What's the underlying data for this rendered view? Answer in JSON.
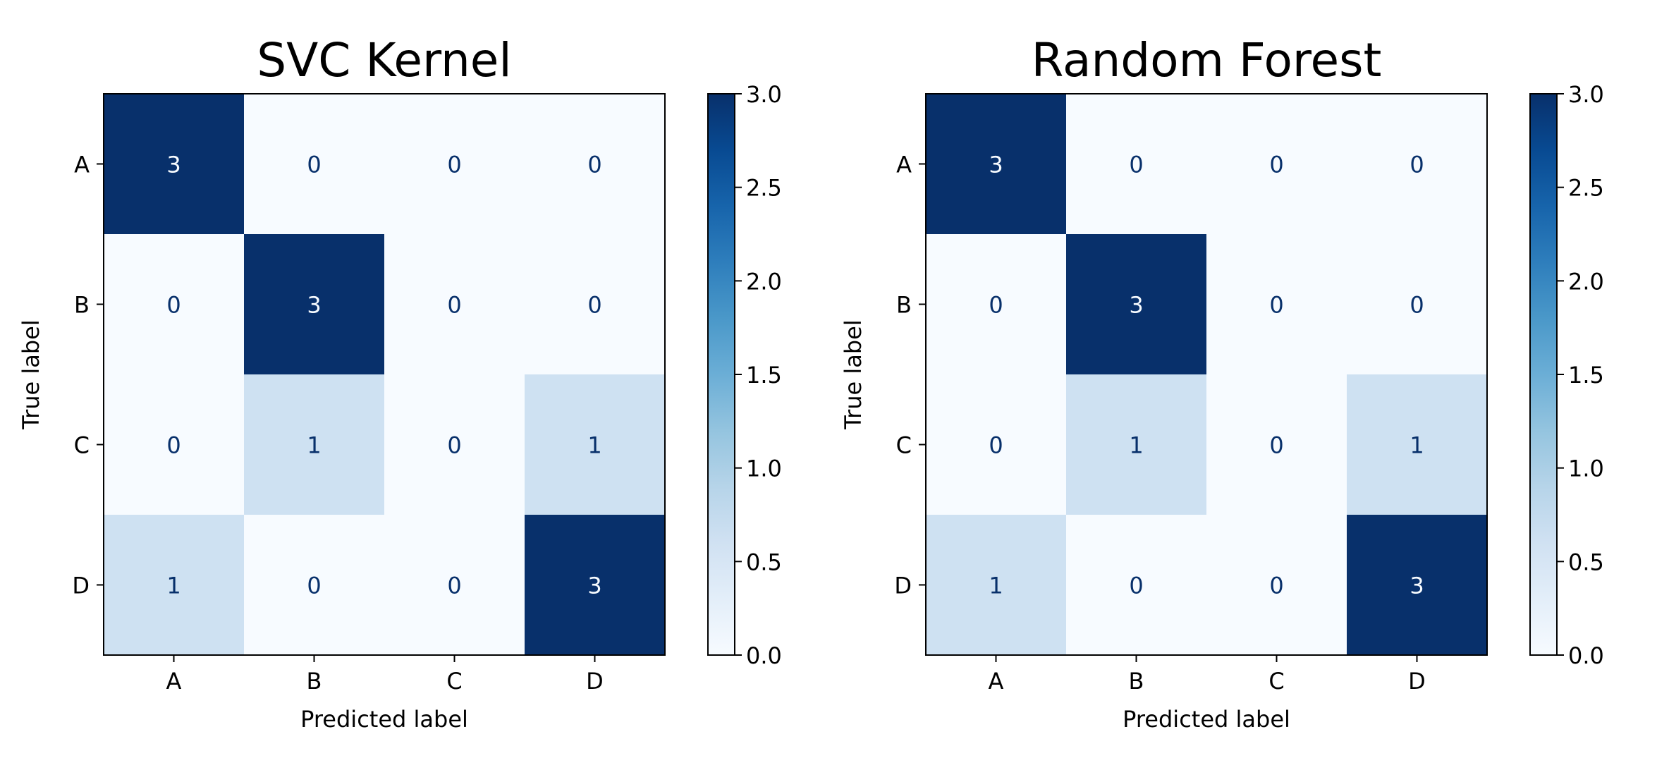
{
  "chart_data": [
    {
      "type": "heatmap",
      "title": "SVC Kernel",
      "xlabel": "Predicted label",
      "ylabel": "True label",
      "x_categories": [
        "A",
        "B",
        "C",
        "D"
      ],
      "y_categories": [
        "A",
        "B",
        "C",
        "D"
      ],
      "values": [
        [
          3,
          0,
          0,
          0
        ],
        [
          0,
          3,
          0,
          0
        ],
        [
          0,
          1,
          0,
          1
        ],
        [
          1,
          0,
          0,
          3
        ]
      ],
      "colorbar": {
        "range": [
          0.0,
          3.0
        ],
        "ticks": [
          "0.0",
          "0.5",
          "1.0",
          "1.5",
          "2.0",
          "2.5",
          "3.0"
        ],
        "colormap": "Blues"
      },
      "grid": false
    },
    {
      "type": "heatmap",
      "title": "Random Forest",
      "xlabel": "Predicted label",
      "ylabel": "True label",
      "x_categories": [
        "A",
        "B",
        "C",
        "D"
      ],
      "y_categories": [
        "A",
        "B",
        "C",
        "D"
      ],
      "values": [
        [
          3,
          0,
          0,
          0
        ],
        [
          0,
          3,
          0,
          0
        ],
        [
          0,
          1,
          0,
          1
        ],
        [
          1,
          0,
          0,
          3
        ]
      ],
      "colorbar": {
        "range": [
          0.0,
          3.0
        ],
        "ticks": [
          "0.0",
          "0.5",
          "1.0",
          "1.5",
          "2.0",
          "2.5",
          "3.0"
        ],
        "colormap": "Blues"
      },
      "grid": false
    }
  ],
  "colors": {
    "low": "#f7fbff",
    "mid": "#abd0e6",
    "high": "#08306b",
    "text_light": "#f7fbff",
    "text_dark": "#08306b"
  }
}
